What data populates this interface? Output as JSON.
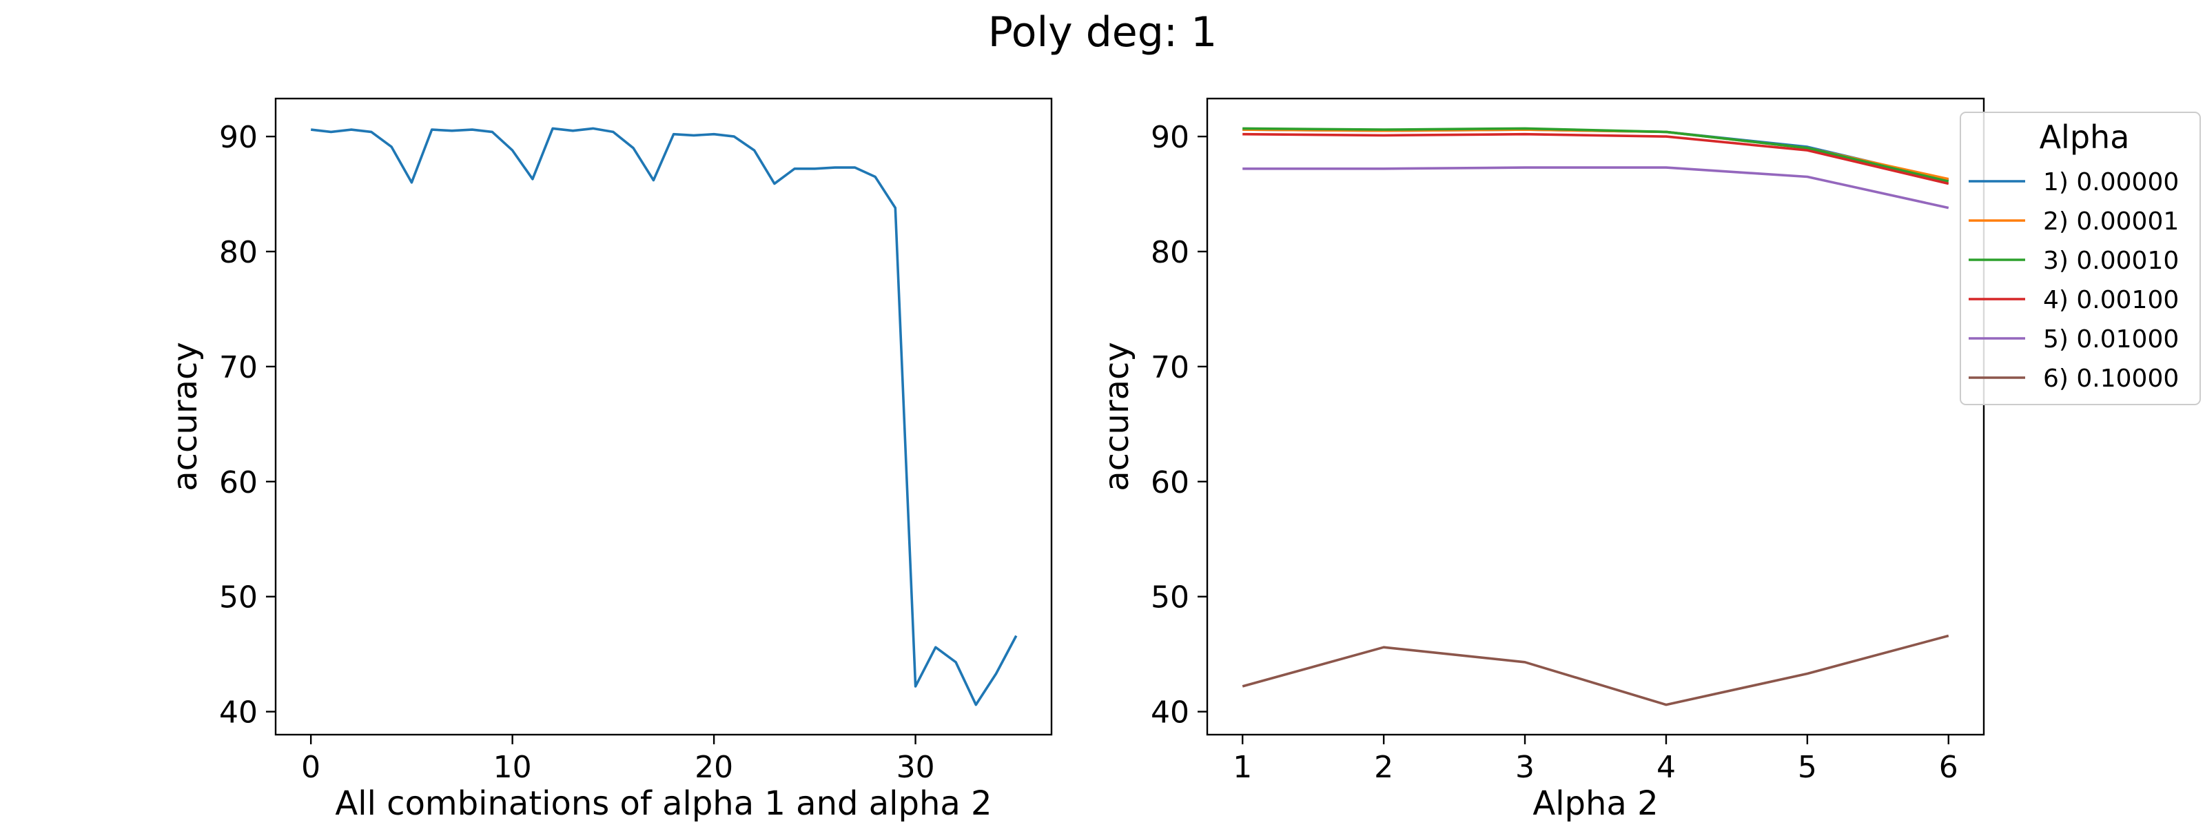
{
  "title": "Poly deg: 1",
  "chart_data": [
    {
      "type": "line",
      "xlabel": "All combinations of alpha 1 and alpha 2",
      "ylabel": "accuracy",
      "xlim": [
        -1.75,
        36.75
      ],
      "ylim": [
        38.0,
        93.3
      ],
      "xticks": [
        0,
        10,
        20,
        30
      ],
      "yticks": [
        40,
        50,
        60,
        70,
        80,
        90
      ],
      "grid": false,
      "series": [
        {
          "color": "#1f77b4",
          "x": [
            0,
            1,
            2,
            3,
            4,
            5,
            6,
            7,
            8,
            9,
            10,
            11,
            12,
            13,
            14,
            15,
            16,
            17,
            18,
            19,
            20,
            21,
            22,
            23,
            24,
            25,
            26,
            27,
            28,
            29,
            30,
            31,
            32,
            33,
            34,
            35
          ],
          "y": [
            90.6,
            90.4,
            90.6,
            90.4,
            89.1,
            86.0,
            90.6,
            90.5,
            90.6,
            90.4,
            88.8,
            86.3,
            90.7,
            90.5,
            90.7,
            90.4,
            89.0,
            86.2,
            90.2,
            90.1,
            90.2,
            90.0,
            88.8,
            85.9,
            87.2,
            87.2,
            87.3,
            87.3,
            86.5,
            83.8,
            42.2,
            45.6,
            44.3,
            40.6,
            43.3,
            46.6
          ]
        }
      ]
    },
    {
      "type": "line",
      "xlabel": "Alpha 2",
      "ylabel": "accuracy",
      "xlim": [
        0.75,
        6.25
      ],
      "ylim": [
        38.0,
        93.3
      ],
      "xticks": [
        1,
        2,
        3,
        4,
        5,
        6
      ],
      "yticks": [
        40,
        50,
        60,
        70,
        80,
        90
      ],
      "grid": false,
      "legend": {
        "title": "Alpha",
        "placement": "upper right, outside axes"
      },
      "series": [
        {
          "name": "1) 0.00000",
          "color": "#1f77b4",
          "x": [
            1,
            2,
            3,
            4,
            5,
            6
          ],
          "y": [
            90.6,
            90.5,
            90.6,
            90.4,
            89.1,
            86.2
          ]
        },
        {
          "name": "2) 0.00001",
          "color": "#ff7f0e",
          "x": [
            1,
            2,
            3,
            4,
            5,
            6
          ],
          "y": [
            90.6,
            90.5,
            90.6,
            90.4,
            89.0,
            86.3
          ]
        },
        {
          "name": "3) 0.00010",
          "color": "#2ca02c",
          "x": [
            1,
            2,
            3,
            4,
            5,
            6
          ],
          "y": [
            90.7,
            90.6,
            90.7,
            90.4,
            89.0,
            86.1
          ]
        },
        {
          "name": "4) 0.00100",
          "color": "#d62728",
          "x": [
            1,
            2,
            3,
            4,
            5,
            6
          ],
          "y": [
            90.2,
            90.1,
            90.2,
            90.0,
            88.8,
            85.9
          ]
        },
        {
          "name": "5) 0.01000",
          "color": "#9467bd",
          "x": [
            1,
            2,
            3,
            4,
            5,
            6
          ],
          "y": [
            87.2,
            87.2,
            87.3,
            87.3,
            86.5,
            83.8
          ]
        },
        {
          "name": "6) 0.10000",
          "color": "#8c564b",
          "x": [
            1,
            2,
            3,
            4,
            5,
            6
          ],
          "y": [
            42.2,
            45.6,
            44.3,
            40.6,
            43.3,
            46.6
          ]
        }
      ]
    }
  ]
}
